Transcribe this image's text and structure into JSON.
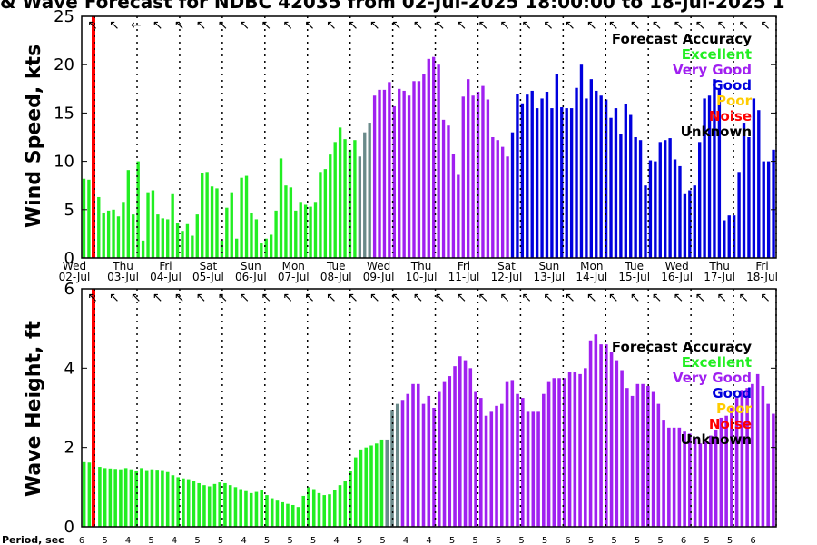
{
  "title": "& Wave Forecast for NDBC 42035 from 02-Jul-2025 18:00:00 to 18-Jul-2025 1",
  "colors": {
    "Excellent": "#22ee22",
    "Very Good": "#a020f0",
    "Good": "#0000dd",
    "Poor": "#ffcc00",
    "Noise": "#ff0000",
    "Unknown": "#000000",
    "transition": "#6a8a8a"
  },
  "legend": {
    "title": "Forecast Accuracy",
    "entries": [
      "Excellent",
      "Very Good",
      "Good",
      "Poor",
      "Noise",
      "Unknown"
    ]
  },
  "days": [
    {
      "dow": "Wed",
      "date": "02-Jul"
    },
    {
      "dow": "Thu",
      "date": "03-Jul"
    },
    {
      "dow": "Fri",
      "date": "04-Jul"
    },
    {
      "dow": "Sat",
      "date": "05-Jul"
    },
    {
      "dow": "Sun",
      "date": "06-Jul"
    },
    {
      "dow": "Mon",
      "date": "07-Jul"
    },
    {
      "dow": "Tue",
      "date": "08-Jul"
    },
    {
      "dow": "Wed",
      "date": "09-Jul"
    },
    {
      "dow": "Thu",
      "date": "10-Jul"
    },
    {
      "dow": "Fri",
      "date": "11-Jul"
    },
    {
      "dow": "Sat",
      "date": "12-Jul"
    },
    {
      "dow": "Sun",
      "date": "13-Jul"
    },
    {
      "dow": "Mon",
      "date": "14-Jul"
    },
    {
      "dow": "Tue",
      "date": "15-Jul"
    },
    {
      "dow": "Wed",
      "date": "16-Jul"
    },
    {
      "dow": "Thu",
      "date": "17-Jul"
    },
    {
      "dow": "Fri",
      "date": "18-Jul"
    }
  ],
  "period_label": "Period, sec",
  "chart_data": [
    {
      "type": "bar",
      "ylabel": "Wind Speed, kts",
      "ylim": [
        0,
        25
      ],
      "yticks": [
        0,
        5,
        10,
        15,
        20,
        25
      ],
      "wind_arrows": [
        "↖",
        "↖",
        "←",
        "↖",
        "↖",
        "↖",
        "↖",
        "↖",
        "↖",
        "↖",
        "↖",
        "↖",
        "↖",
        "↖",
        "↖",
        "↖",
        "↖",
        "↖",
        "↖",
        "↖",
        "↖",
        "↖",
        "↖",
        "↖",
        "↖",
        "↖",
        "↖",
        "↖",
        "↖",
        "↖",
        "↖",
        "↖"
      ],
      "segments": [
        {
          "category": "Excellent",
          "values": [
            8.2,
            8.1,
            0,
            6.3,
            4.7,
            4.9,
            5.0,
            4.3,
            5.8,
            9.1,
            4.5,
            10.0,
            1.8,
            6.8,
            7.0,
            4.5,
            4.1,
            4.0,
            6.6,
            3.6,
            2.8,
            3.5,
            2.3,
            4.5,
            8.8,
            8.9,
            7.4,
            7.2,
            1.8,
            5.2,
            6.8,
            2.0,
            8.3,
            8.5,
            4.7,
            4.0,
            1.5,
            2.0,
            2.4,
            4.9,
            10.3,
            7.5,
            7.3,
            4.9,
            5.8,
            5.5,
            5.3,
            5.8,
            8.9,
            9.2,
            10.7,
            12.0,
            13.5,
            12.3,
            11.2,
            12.2
          ]
        },
        {
          "category": "transition",
          "values": [
            10.5,
            13.0,
            14.0
          ]
        },
        {
          "category": "Very Good",
          "values": [
            16.8,
            17.4,
            17.4,
            18.2,
            15.7,
            17.5,
            17.3,
            16.8,
            18.3,
            18.3,
            19.0,
            20.6,
            20.8,
            20.0,
            14.3,
            13.7,
            10.8,
            8.6,
            16.7,
            18.5,
            16.8,
            17.2,
            17.8,
            16.4
          ]
        },
        {
          "category": "Very Good",
          "values": [
            12.5,
            12.2,
            11.5,
            10.5
          ]
        },
        {
          "category": "Good",
          "values": [
            13.0,
            17.0,
            16.0,
            16.9,
            17.3,
            15.5,
            16.5,
            17.2,
            15.5,
            19.0,
            15.6,
            15.5,
            15.5,
            17.6,
            20.0,
            16.5,
            18.5,
            17.3,
            16.8,
            16.4,
            14.5,
            15.5,
            12.8,
            15.9,
            14.8,
            12.5,
            12.2,
            7.5,
            10.1,
            10.0,
            12.0,
            12.2,
            12.4,
            10.2,
            9.5,
            6.6,
            7.0,
            7.5,
            12.0,
            16.5,
            16.8,
            18.5,
            17.5,
            3.9,
            4.4,
            4.4,
            8.9,
            14.0,
            12.5,
            16.5,
            15.3,
            10.0,
            10.0,
            11.2
          ]
        }
      ]
    },
    {
      "type": "bar",
      "ylabel": "Wave Height, ft",
      "ylim": [
        0,
        6
      ],
      "yticks": [
        0,
        2,
        4,
        6
      ],
      "wave_arrows": [
        "↖",
        "↖",
        "↖",
        "↖",
        "↖",
        "↖",
        "↖",
        "↖",
        "↖",
        "↖",
        "↖",
        "↖",
        "↖",
        "↖",
        "↖",
        "↖",
        "↖",
        "↖",
        "↖",
        "↖",
        "↖",
        "↖",
        "↖",
        "↖",
        "↖",
        "↖",
        "↖",
        "↖",
        "↖",
        "↖",
        "↖",
        "↖"
      ],
      "segments": [
        {
          "category": "Excellent",
          "values": [
            1.63,
            1.62,
            0,
            1.51,
            1.48,
            1.47,
            1.46,
            1.45,
            1.48,
            1.45,
            1.42,
            1.48,
            1.43,
            1.45,
            1.44,
            1.43,
            1.38,
            1.3,
            1.25,
            1.22,
            1.2,
            1.15,
            1.1,
            1.05,
            1.02,
            1.08,
            1.12,
            1.1,
            1.05,
            1.0,
            0.95,
            0.9,
            0.85,
            0.88,
            0.92,
            0.8,
            0.72,
            0.66,
            0.62,
            0.58,
            0.55,
            0.5,
            0.78,
            1.0,
            0.95,
            0.85,
            0.8,
            0.82,
            0.92,
            1.05,
            1.15,
            1.4,
            1.75,
            1.95,
            2.0,
            2.05,
            2.1,
            2.2
          ]
        },
        {
          "category": "transition",
          "values": [
            2.2,
            2.95,
            3.1
          ]
        },
        {
          "category": "Very Good",
          "values": [
            3.2,
            3.35,
            3.6,
            3.6,
            3.1,
            3.3,
            3.0,
            3.4,
            3.65,
            3.8,
            4.05,
            4.3,
            4.2,
            4.0,
            3.4,
            3.25,
            2.8,
            2.9,
            3.05,
            3.1,
            3.65,
            3.7,
            3.35,
            3.25,
            2.9,
            2.9,
            2.9,
            3.35,
            3.65,
            3.75,
            3.75,
            3.75,
            3.9,
            3.9,
            3.85,
            4.0,
            4.7,
            4.85,
            4.6,
            4.6,
            4.4,
            4.2,
            3.95,
            3.5,
            3.3,
            3.6,
            3.6,
            3.55,
            3.4,
            3.1,
            2.7,
            2.5,
            2.5,
            2.5,
            2.4,
            2.35,
            2.25,
            2.1,
            2.15,
            2.3,
            2.45,
            2.75,
            2.8,
            3.0,
            3.25,
            3.45,
            3.5,
            3.6,
            3.85,
            3.55,
            3.1,
            2.85
          ]
        }
      ],
      "periods": [
        6,
        5,
        5,
        5,
        5,
        5,
        4,
        4,
        5,
        5,
        5,
        5,
        4,
        4,
        4,
        5,
        5,
        5,
        5,
        5,
        5,
        4,
        4,
        5,
        5,
        5,
        4,
        5,
        5,
        5,
        5,
        5,
        5,
        4,
        4,
        5,
        5,
        5,
        5,
        5,
        5,
        5,
        4,
        4,
        3,
        4,
        7,
        5,
        5,
        5,
        5,
        5,
        5,
        5,
        5,
        5,
        5,
        5,
        5,
        5,
        5,
        5,
        6,
        6,
        6,
        6,
        5,
        5,
        5,
        5,
        5,
        5,
        5,
        5,
        5,
        5,
        6,
        6,
        6,
        6,
        5,
        5,
        5,
        5,
        5,
        6,
        6,
        6,
        6,
        6
      ]
    }
  ]
}
